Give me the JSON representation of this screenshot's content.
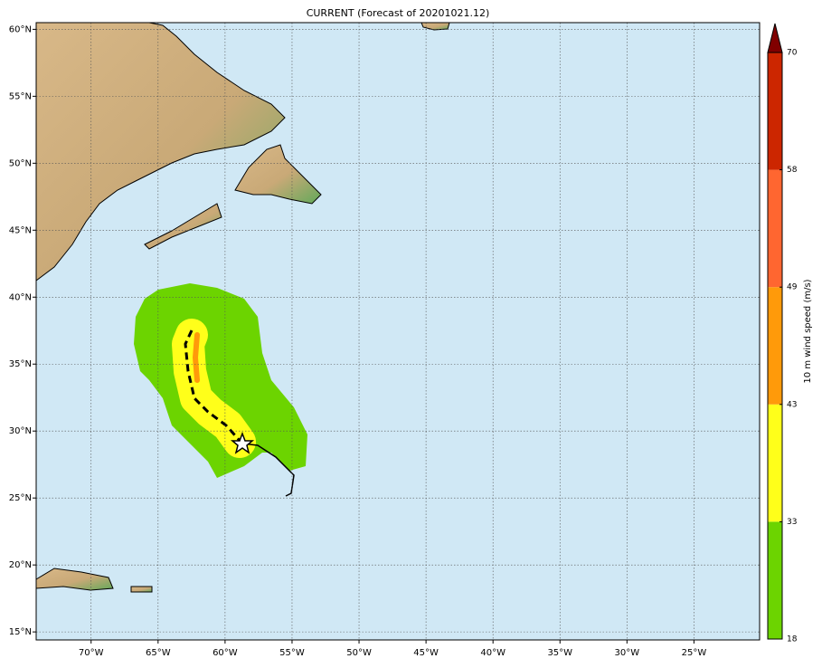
{
  "map": {
    "title": "CURRENT (Forecast of 20201021.12)",
    "lonlim": [
      -74.1,
      -20.1
    ],
    "latlim": [
      14.4,
      60.5
    ],
    "lon_ticks": [
      {
        "value": -70,
        "label": "70°W"
      },
      {
        "value": -65,
        "label": "65°W"
      },
      {
        "value": -60,
        "label": "60°W"
      },
      {
        "value": -55,
        "label": "55°W"
      },
      {
        "value": -50,
        "label": "50°W"
      },
      {
        "value": -45,
        "label": "45°W"
      },
      {
        "value": -40,
        "label": "40°W"
      },
      {
        "value": -35,
        "label": "35°W"
      },
      {
        "value": -30,
        "label": "30°W"
      },
      {
        "value": -25,
        "label": "25°W"
      }
    ],
    "lat_ticks": [
      {
        "value": 15,
        "label": "15°N"
      },
      {
        "value": 20,
        "label": "20°N"
      },
      {
        "value": 25,
        "label": "25°N"
      },
      {
        "value": 30,
        "label": "30°N"
      },
      {
        "value": 35,
        "label": "35°N"
      },
      {
        "value": 40,
        "label": "40°N"
      },
      {
        "value": 45,
        "label": "45°N"
      },
      {
        "value": 50,
        "label": "50°N"
      },
      {
        "value": 55,
        "label": "55°N"
      },
      {
        "value": 60,
        "label": "60°N"
      }
    ],
    "colorbar": {
      "label": "10 m wind speed (m/s)",
      "levels": [
        18,
        33,
        43,
        49,
        58,
        70
      ],
      "colors": [
        "#6cd400",
        "#ffff1a",
        "#ff9a0a",
        "#ff6630",
        "#cc2600"
      ],
      "extend_color": "#800000"
    }
  }
}
